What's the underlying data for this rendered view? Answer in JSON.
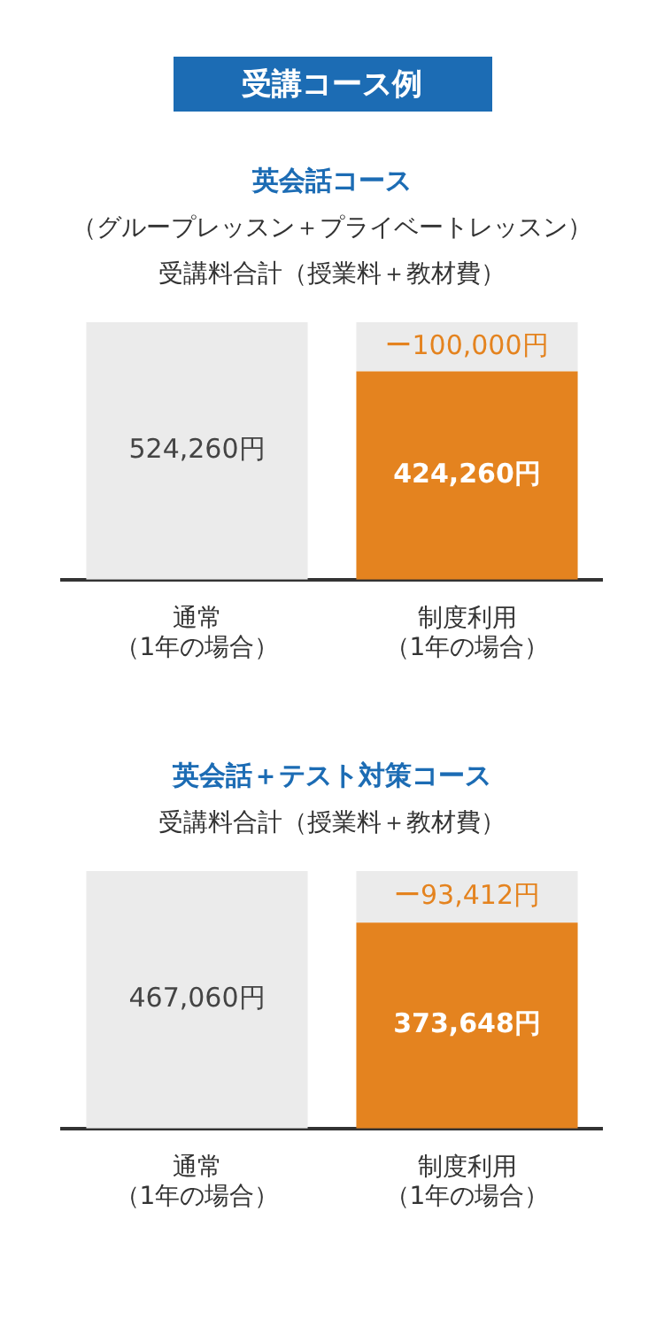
{
  "chart_data": [
    {
      "type": "bar",
      "title": "英会話コース",
      "subtitle": "（グループレッスン＋プライベートレッスン）受講料合計（授業料＋教材費）",
      "annotations": [
        "受講コース例"
      ],
      "stacked": true,
      "grid": false,
      "legend": false,
      "tick_labels": "x",
      "categories": [
        "通常（1年の場合）",
        "制度利用（1年の場合）"
      ],
      "series": [
        {
          "colors": [
            "#ebebeb",
            "#e4831f"
          ],
          "values": [
            524260,
            424260
          ],
          "value_labels": [
            "524,260円",
            "424,260円"
          ]
        },
        {
          "color": "#ebebeb",
          "values": [
            null,
            100000
          ],
          "value_labels": [
            null,
            "ー100,000円"
          ]
        }
      ]
    },
    {
      "type": "bar",
      "title": "英会話＋テスト対策コース",
      "subtitle": "受講料合計（授業料＋教材費）",
      "stacked": true,
      "grid": false,
      "legend": false,
      "tick_labels": "x",
      "categories": [
        "通常（1年の場合）",
        "制度利用（1年の場合）"
      ],
      "series": [
        {
          "colors": [
            "#ebebeb",
            "#e4831f"
          ],
          "values": [
            467060,
            373648
          ],
          "value_labels": [
            "467,060円",
            "373,648円"
          ]
        },
        {
          "color": "#ebebeb",
          "values": [
            null,
            93412
          ],
          "value_labels": [
            null,
            "ー93,412円"
          ]
        }
      ]
    }
  ]
}
